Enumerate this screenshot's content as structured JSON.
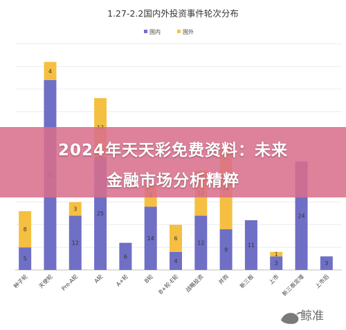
{
  "chart_data": {
    "type": "bar",
    "stacked": true,
    "title": "1.27-2.2国内外投资事件轮次分布",
    "legend_position": "top",
    "grid": true,
    "ylim": [
      0,
      50
    ],
    "categories": [
      "种子轮",
      "天使轮",
      "Pre-A轮",
      "A轮",
      "A+轮",
      "B轮",
      "B+轮-E轮",
      "战略投资",
      "并购",
      "新三板",
      "上市",
      "新三板定增",
      "上市后"
    ],
    "series": [
      {
        "name": "国内",
        "color": "#6f6fc6",
        "values": [
          5,
          42,
          12,
          25,
          6,
          14,
          4,
          12,
          9,
          11,
          3,
          24,
          3
        ]
      },
      {
        "name": "国外",
        "color": "#f5c042",
        "values": [
          8,
          4,
          3,
          13,
          0,
          5,
          6,
          10,
          18,
          0,
          1,
          0,
          0
        ]
      }
    ]
  },
  "banner": {
    "line1": "2024年天天彩免费资料：未来",
    "line2": "金融市场分析精粹"
  },
  "watermark": {
    "text": "鲸准"
  },
  "colors": {
    "domestic": "#6f6fc6",
    "foreign": "#f5c042",
    "banner": "#d86e8c"
  }
}
